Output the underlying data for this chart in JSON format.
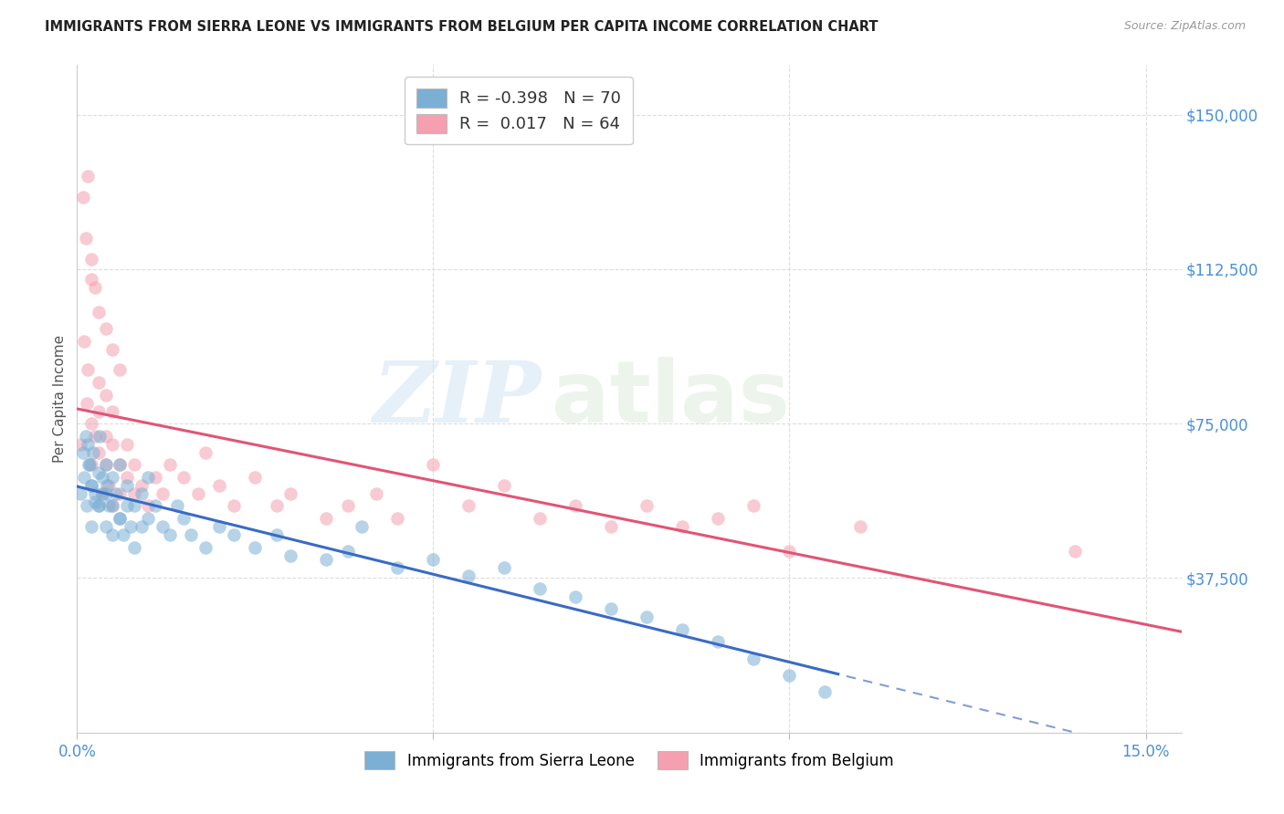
{
  "title": "IMMIGRANTS FROM SIERRA LEONE VS IMMIGRANTS FROM BELGIUM PER CAPITA INCOME CORRELATION CHART",
  "source": "Source: ZipAtlas.com",
  "ylabel": "Per Capita Income",
  "yticks": [
    0,
    37500,
    75000,
    112500,
    150000
  ],
  "ytick_labels": [
    "",
    "$37,500",
    "$75,000",
    "$112,500",
    "$150,000"
  ],
  "xticks": [
    0.0,
    0.05,
    0.1,
    0.15
  ],
  "xtick_labels": [
    "0.0%",
    "",
    "",
    "15.0%"
  ],
  "xlim": [
    0.0,
    0.155
  ],
  "ylim": [
    0,
    162000
  ],
  "blue_color": "#7BAFD4",
  "pink_color": "#F4A0B0",
  "blue_line_color": "#3A6BC4",
  "pink_line_color": "#E05577",
  "watermark_zip": "ZIP",
  "watermark_atlas": "atlas",
  "scatter_alpha": 0.55,
  "marker_size": 110,
  "sierra_leone_x": [
    0.0005,
    0.001,
    0.0013,
    0.0015,
    0.0018,
    0.002,
    0.002,
    0.0022,
    0.0025,
    0.003,
    0.003,
    0.0032,
    0.0035,
    0.004,
    0.004,
    0.0042,
    0.0045,
    0.005,
    0.005,
    0.0055,
    0.006,
    0.006,
    0.0065,
    0.007,
    0.007,
    0.0075,
    0.008,
    0.008,
    0.009,
    0.009,
    0.01,
    0.01,
    0.011,
    0.012,
    0.013,
    0.014,
    0.015,
    0.016,
    0.018,
    0.02,
    0.022,
    0.025,
    0.028,
    0.03,
    0.035,
    0.038,
    0.04,
    0.045,
    0.05,
    0.055,
    0.06,
    0.065,
    0.07,
    0.075,
    0.08,
    0.085,
    0.09,
    0.095,
    0.1,
    0.105,
    0.0008,
    0.0012,
    0.0016,
    0.002,
    0.0025,
    0.003,
    0.0035,
    0.004,
    0.005,
    0.006
  ],
  "sierra_leone_y": [
    58000,
    62000,
    55000,
    70000,
    65000,
    60000,
    50000,
    68000,
    56000,
    63000,
    55000,
    72000,
    58000,
    65000,
    50000,
    60000,
    55000,
    48000,
    62000,
    58000,
    52000,
    65000,
    48000,
    55000,
    60000,
    50000,
    55000,
    45000,
    58000,
    50000,
    52000,
    62000,
    55000,
    50000,
    48000,
    55000,
    52000,
    48000,
    45000,
    50000,
    48000,
    45000,
    48000,
    43000,
    42000,
    44000,
    50000,
    40000,
    42000,
    38000,
    40000,
    35000,
    33000,
    30000,
    28000,
    25000,
    22000,
    18000,
    14000,
    10000,
    68000,
    72000,
    65000,
    60000,
    58000,
    55000,
    62000,
    58000,
    55000,
    52000
  ],
  "belgium_x": [
    0.0005,
    0.001,
    0.0013,
    0.0015,
    0.002,
    0.002,
    0.0025,
    0.003,
    0.003,
    0.0035,
    0.004,
    0.004,
    0.0045,
    0.005,
    0.005,
    0.006,
    0.006,
    0.007,
    0.007,
    0.008,
    0.008,
    0.009,
    0.01,
    0.011,
    0.012,
    0.013,
    0.015,
    0.017,
    0.018,
    0.02,
    0.022,
    0.025,
    0.028,
    0.03,
    0.035,
    0.038,
    0.042,
    0.045,
    0.05,
    0.055,
    0.06,
    0.065,
    0.07,
    0.075,
    0.08,
    0.085,
    0.09,
    0.095,
    0.1,
    0.11,
    0.0008,
    0.0012,
    0.002,
    0.0025,
    0.003,
    0.004,
    0.005,
    0.006,
    0.0015,
    0.002,
    0.003,
    0.004,
    0.005,
    0.14
  ],
  "belgium_y": [
    70000,
    95000,
    80000,
    88000,
    75000,
    65000,
    72000,
    68000,
    78000,
    58000,
    65000,
    72000,
    60000,
    70000,
    55000,
    65000,
    58000,
    62000,
    70000,
    58000,
    65000,
    60000,
    55000,
    62000,
    58000,
    65000,
    62000,
    58000,
    68000,
    60000,
    55000,
    62000,
    55000,
    58000,
    52000,
    55000,
    58000,
    52000,
    65000,
    55000,
    60000,
    52000,
    55000,
    50000,
    55000,
    50000,
    52000,
    55000,
    44000,
    50000,
    130000,
    120000,
    115000,
    108000,
    102000,
    98000,
    93000,
    88000,
    135000,
    110000,
    85000,
    82000,
    78000,
    44000
  ]
}
